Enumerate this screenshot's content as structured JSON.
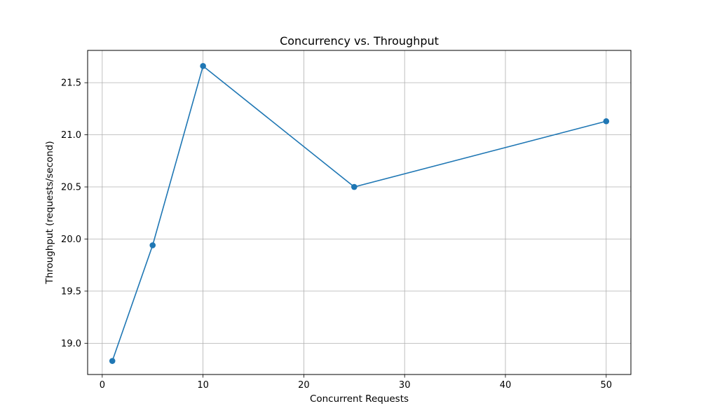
{
  "chart_data": {
    "type": "line",
    "title": "Concurrency vs. Throughput",
    "xlabel": "Concurrent Requests",
    "ylabel": "Throughput (requests/second)",
    "xlim": [
      -1.45,
      52.45
    ],
    "ylim": [
      18.7,
      21.81
    ],
    "xticks": [
      0,
      10,
      20,
      30,
      40,
      50
    ],
    "xtick_labels": [
      "0",
      "10",
      "20",
      "30",
      "40",
      "50"
    ],
    "yticks": [
      19.0,
      19.5,
      20.0,
      20.5,
      21.0,
      21.5
    ],
    "ytick_labels": [
      "19.0",
      "19.5",
      "20.0",
      "20.5",
      "21.0",
      "21.5"
    ],
    "grid": true,
    "series": [
      {
        "name": "Throughput",
        "color": "#1f77b4",
        "marker": "circle",
        "x": [
          1,
          5,
          10,
          25,
          50
        ],
        "y": [
          18.83,
          19.94,
          21.66,
          20.5,
          21.13
        ]
      }
    ]
  }
}
